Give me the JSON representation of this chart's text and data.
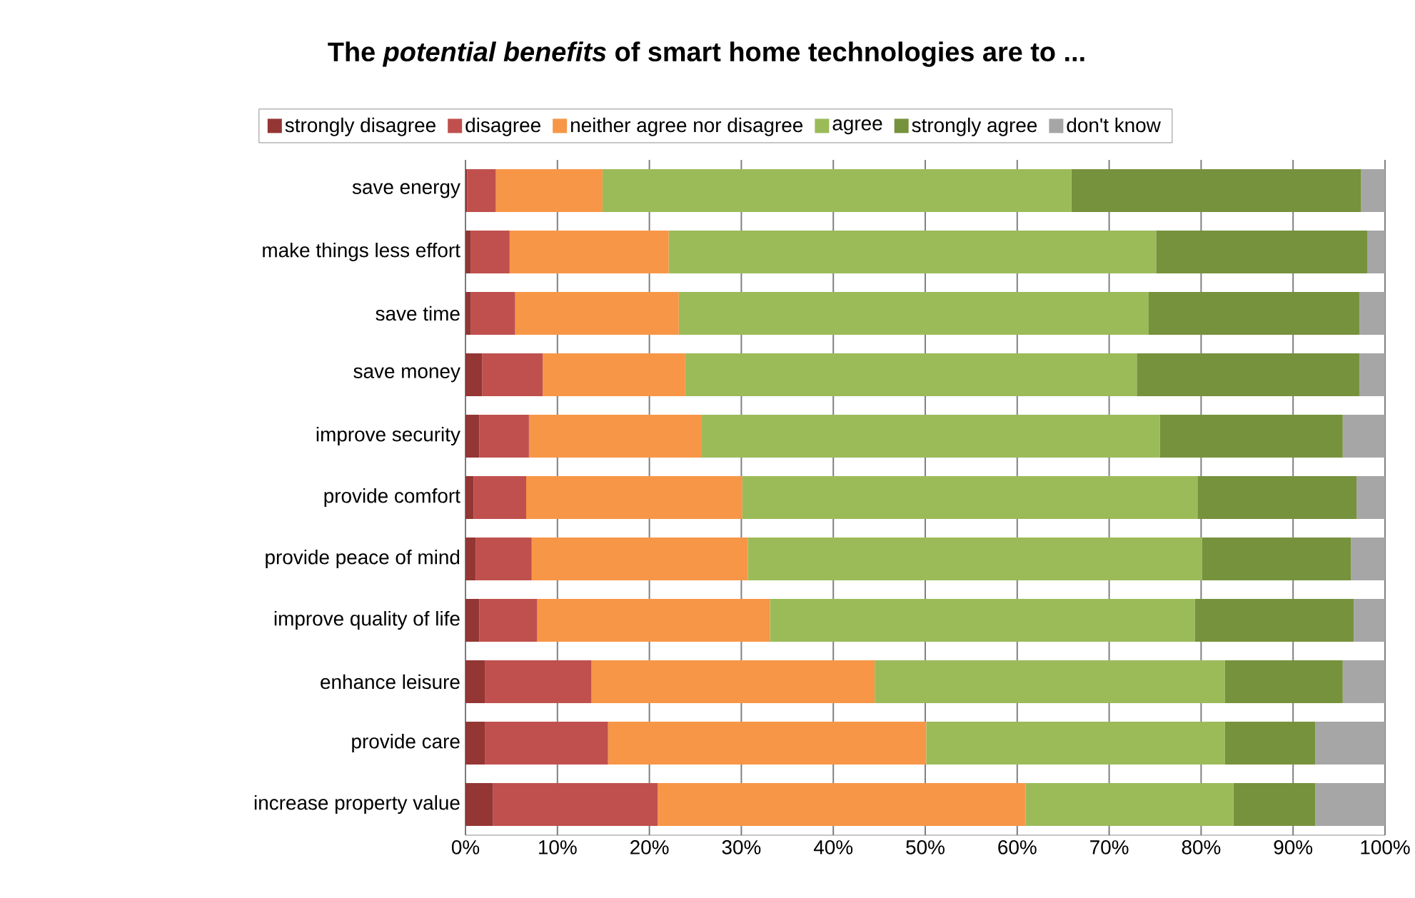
{
  "chart_data": {
    "type": "bar",
    "orientation": "horizontal",
    "stacked": true,
    "title": "The *potential benefits* of smart home technologies are to ...",
    "categories": [
      "save energy",
      "make things less effort",
      "save time",
      "save money",
      "improve security",
      "provide comfort",
      "provide peace of mind",
      "improve quality of life",
      "enhance leisure",
      "provide care",
      "increase property value"
    ],
    "series": [
      {
        "name": "strongly disagree",
        "color": "#943634",
        "values": [
          0.2,
          0.6,
          0.6,
          1.8,
          1.5,
          0.9,
          1.1,
          1.5,
          2.1,
          2.1,
          3.0
        ]
      },
      {
        "name": "disagree",
        "color": "#c0504d",
        "values": [
          3.1,
          4.2,
          4.8,
          6.6,
          5.4,
          5.7,
          6.1,
          6.3,
          11.6,
          13.4,
          17.9
        ]
      },
      {
        "name": "neither agree nor disagree",
        "color": "#f79646",
        "values": [
          11.6,
          17.3,
          17.8,
          15.5,
          18.8,
          23.5,
          23.5,
          25.3,
          30.8,
          34.6,
          40.0
        ]
      },
      {
        "name": "agree",
        "color": "#9bbb59",
        "values": [
          51.0,
          53.0,
          51.1,
          49.1,
          49.8,
          49.5,
          49.4,
          46.2,
          38.1,
          32.5,
          22.6
        ]
      },
      {
        "name": "strongly agree",
        "color": "#76923c",
        "values": [
          31.5,
          23.0,
          22.9,
          24.2,
          19.9,
          17.3,
          16.2,
          17.3,
          12.8,
          9.8,
          8.9
        ]
      },
      {
        "name": "don't know",
        "color": "#a6a6a6",
        "values": [
          2.6,
          1.9,
          2.8,
          2.8,
          4.6,
          3.1,
          3.7,
          3.4,
          4.6,
          7.6,
          7.6
        ]
      }
    ],
    "xlim": [
      0,
      100
    ],
    "xticks": [
      {
        "value": 0,
        "label": "0%"
      },
      {
        "value": 10,
        "label": "10%"
      },
      {
        "value": 20,
        "label": "20%"
      },
      {
        "value": 30,
        "label": "30%"
      },
      {
        "value": 40,
        "label": "40%"
      },
      {
        "value": 50,
        "label": "50%"
      },
      {
        "value": 60,
        "label": "60%"
      },
      {
        "value": 70,
        "label": "70%"
      },
      {
        "value": 80,
        "label": "80%"
      },
      {
        "value": 90,
        "label": "90%"
      },
      {
        "value": 100,
        "label": "100%"
      }
    ],
    "grid": "x",
    "legend": "top"
  }
}
